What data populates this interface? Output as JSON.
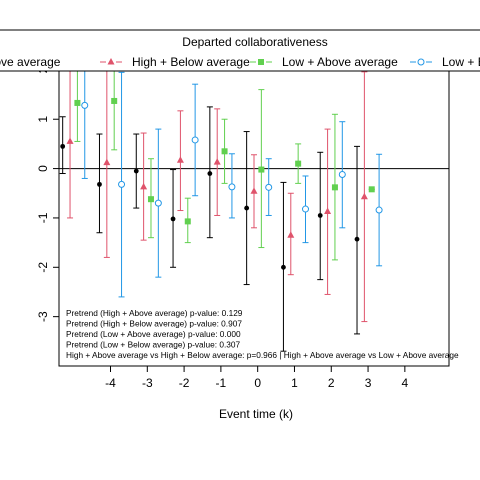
{
  "chart_data": {
    "type": "scatter",
    "title": "",
    "xlabel": "Event time (k)",
    "ylabel": "",
    "x_ticks": [
      -4,
      -3,
      -2,
      -1,
      0,
      1,
      2,
      3,
      4
    ],
    "y_ticks": [
      -3,
      -2,
      -1,
      0,
      1,
      2
    ],
    "xlim": [
      -5.4,
      5.2
    ],
    "ylim": [
      -4.0,
      2.2
    ],
    "reference_line_y": 0,
    "grid": false,
    "legend": {
      "title": "Departed collaborativeness",
      "placement": "top"
    },
    "error_bars": "vertical confidence intervals",
    "series": [
      {
        "name": "High + Above average",
        "color": "#000000",
        "marker": "filled-circle",
        "offset": -0.3,
        "points": [
          {
            "x": -5,
            "y": 0.45,
            "lo": -0.1,
            "hi": 1.05
          },
          {
            "x": -4,
            "y": -0.32,
            "lo": -1.3,
            "hi": 0.7
          },
          {
            "x": -3,
            "y": -0.05,
            "lo": -0.8,
            "hi": 0.7
          },
          {
            "x": -2,
            "y": -1.02,
            "lo": -2.0,
            "hi": -0.02
          },
          {
            "x": -1,
            "y": -0.1,
            "lo": -1.4,
            "hi": 1.25
          },
          {
            "x": 0,
            "y": -0.8,
            "lo": -2.35,
            "hi": 0.75
          },
          {
            "x": 1,
            "y": -2.0,
            "lo": -3.7,
            "hi": -0.28
          },
          {
            "x": 2,
            "y": -0.95,
            "lo": -2.25,
            "hi": 0.33
          },
          {
            "x": 3,
            "y": -1.43,
            "lo": -3.35,
            "hi": 0.45
          }
        ]
      },
      {
        "name": "High + Below average",
        "color": "#DF536B",
        "marker": "filled-triangle",
        "offset": -0.1,
        "points": [
          {
            "x": -5,
            "y": 0.55,
            "lo": -1.0,
            "hi": 2.1
          },
          {
            "x": -4,
            "y": 0.12,
            "lo": -1.8,
            "hi": 2.05
          },
          {
            "x": -3,
            "y": -0.37,
            "lo": -1.45,
            "hi": 0.72
          },
          {
            "x": -2,
            "y": 0.17,
            "lo": -0.85,
            "hi": 1.17
          },
          {
            "x": -1,
            "y": 0.13,
            "lo": -0.95,
            "hi": 1.21
          },
          {
            "x": 0,
            "y": -0.46,
            "lo": -1.2,
            "hi": 0.28
          },
          {
            "x": 1,
            "y": -1.35,
            "lo": -2.15,
            "hi": -0.5
          },
          {
            "x": 2,
            "y": -0.87,
            "lo": -2.55,
            "hi": 0.8
          },
          {
            "x": 3,
            "y": -0.57,
            "lo": -3.1,
            "hi": 1.96
          }
        ]
      },
      {
        "name": "Low + Above average",
        "color": "#61D04F",
        "marker": "filled-square",
        "offset": 0.1,
        "points": [
          {
            "x": -5,
            "y": 1.33,
            "lo": 0.55,
            "hi": 2.1
          },
          {
            "x": -4,
            "y": 1.37,
            "lo": 0.38,
            "hi": 2.1
          },
          {
            "x": -3,
            "y": -0.62,
            "lo": -1.4,
            "hi": 0.2
          },
          {
            "x": -2,
            "y": -1.07,
            "lo": -1.5,
            "hi": -0.6
          },
          {
            "x": -1,
            "y": 0.35,
            "lo": -0.3,
            "hi": 1.0
          },
          {
            "x": 0,
            "y": -0.02,
            "lo": -1.6,
            "hi": 1.6
          },
          {
            "x": 1,
            "y": 0.1,
            "lo": -0.3,
            "hi": 0.5
          },
          {
            "x": 2,
            "y": -0.38,
            "lo": -1.85,
            "hi": 1.1
          },
          {
            "x": 3,
            "y": -0.42,
            "lo": -0.42,
            "hi": -0.42
          }
        ]
      },
      {
        "name": "Low + Below average",
        "color": "#2297E6",
        "marker": "open-circle",
        "offset": 0.3,
        "points": [
          {
            "x": -5,
            "y": 1.28,
            "lo": -0.2,
            "hi": 2.1
          },
          {
            "x": -4,
            "y": -0.32,
            "lo": -2.6,
            "hi": 1.95
          },
          {
            "x": -3,
            "y": -0.7,
            "lo": -2.2,
            "hi": 0.8
          },
          {
            "x": -2,
            "y": 0.58,
            "lo": -0.55,
            "hi": 1.71
          },
          {
            "x": -1,
            "y": -0.37,
            "lo": -1.0,
            "hi": 0.3
          },
          {
            "x": 0,
            "y": -0.38,
            "lo": -0.95,
            "hi": 0.2
          },
          {
            "x": 1,
            "y": -0.82,
            "lo": -1.5,
            "hi": -0.15
          },
          {
            "x": 2,
            "y": -0.12,
            "lo": -1.2,
            "hi": 0.95
          },
          {
            "x": 3,
            "y": -0.84,
            "lo": -1.97,
            "hi": 0.29
          }
        ]
      }
    ],
    "annotations": [
      "Pretrend (High + Above average) p-value: 0.129",
      "Pretrend (High + Below average) p-value: 0.907",
      "Pretrend (Low + Above average) p-value: 0.000",
      "Pretrend (Low + Below average) p-value: 0.307",
      "High + Above average vs High + Below average: p=0.966 | High + Above average vs Low + Above average"
    ]
  }
}
